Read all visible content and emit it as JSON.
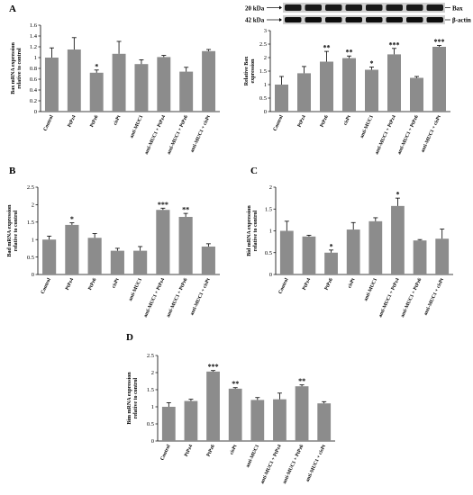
{
  "chart_data": [
    {
      "panel": "A",
      "type": "bar",
      "ylabel": "Bax mRNA expression relative to control",
      "ylim": [
        0,
        1.6
      ],
      "yticks": [
        0,
        0.2,
        0.4,
        0.6,
        0.8,
        1,
        1.2,
        1.4,
        1.6
      ],
      "categories": [
        "Control",
        "PtPz4",
        "PtPz6",
        "cisPt",
        "anti-MUC1",
        "anti-MUC1 + PtPz4",
        "anti-MUC1 + PtPz6",
        "anti-MUC1 + cisPt"
      ],
      "values": [
        1.0,
        1.15,
        0.72,
        1.07,
        0.88,
        1.01,
        0.74,
        1.12
      ],
      "errors": [
        0.18,
        0.22,
        0.05,
        0.23,
        0.08,
        0.03,
        0.08,
        0.03
      ],
      "significance": [
        "",
        "",
        "*",
        "",
        "",
        "",
        "",
        ""
      ]
    },
    {
      "panel": "A",
      "type": "bar",
      "ylabel": "Relative Bax expression",
      "ylim": [
        0,
        3
      ],
      "yticks": [
        0,
        0.5,
        1,
        1.5,
        2,
        2.5,
        3
      ],
      "categories": [
        "Control",
        "PtPz4",
        "PtPz6",
        "cisPt",
        "anti-MUC1",
        "anti-MUC1 + PtPz4",
        "anti-MUC1 + PtPz6",
        "anti-MUC1 + cisPt"
      ],
      "values": [
        1.0,
        1.42,
        1.85,
        1.98,
        1.55,
        2.12,
        1.25,
        2.4
      ],
      "errors": [
        0.3,
        0.25,
        0.38,
        0.08,
        0.1,
        0.22,
        0.05,
        0.05
      ],
      "significance": [
        "",
        "",
        "**",
        "**",
        "*",
        "***",
        "",
        "***"
      ],
      "blot_labels": [
        {
          "left": "20 kDa",
          "right": "Bax"
        },
        {
          "left": "42 kDa",
          "right": "β-actin"
        }
      ]
    },
    {
      "panel": "B",
      "type": "bar",
      "ylabel": "Bad mRNA expression relative to control",
      "ylim": [
        0,
        2.5
      ],
      "yticks": [
        0,
        0.5,
        1,
        1.5,
        2,
        2.5
      ],
      "categories": [
        "Control",
        "PtPz4",
        "PtPz6",
        "cisPt",
        "anti-MUC1",
        "anti-MUC1 + PtPz4",
        "anti-MUC1 + PtPz6",
        "anti-MUC1 + cisPt"
      ],
      "values": [
        1.0,
        1.42,
        1.05,
        0.68,
        0.68,
        1.85,
        1.65,
        0.8
      ],
      "errors": [
        0.1,
        0.06,
        0.12,
        0.07,
        0.12,
        0.05,
        0.1,
        0.08
      ],
      "significance": [
        "",
        "*",
        "",
        "",
        "",
        "***",
        "**",
        ""
      ]
    },
    {
      "panel": "C",
      "type": "bar",
      "ylabel": "Bid mRNA expression relative to control",
      "ylim": [
        0,
        2
      ],
      "yticks": [
        0,
        0.5,
        1,
        1.5,
        2
      ],
      "categories": [
        "Control",
        "PtPz4",
        "PtPz6",
        "cisPt",
        "anti-MUC1",
        "anti-MUC1 + PtPz4",
        "anti-MUC1 + PtPz6",
        "anti-MUC1 + cisPt"
      ],
      "values": [
        1.0,
        0.87,
        0.5,
        1.03,
        1.22,
        1.57,
        0.78,
        0.82
      ],
      "errors": [
        0.22,
        0.03,
        0.06,
        0.16,
        0.08,
        0.18,
        0.02,
        0.22
      ],
      "significance": [
        "",
        "",
        "*",
        "",
        "",
        "*",
        "",
        ""
      ]
    },
    {
      "panel": "D",
      "type": "bar",
      "ylabel": "Bim mRNA expression relative to control",
      "ylim": [
        0,
        2.5
      ],
      "yticks": [
        0,
        0.5,
        1,
        1.5,
        2,
        2.5
      ],
      "categories": [
        "Control",
        "PtPz4",
        "PtPz6",
        "cisPt",
        "anti-MUC1",
        "anti-MUC1 + PtPz4",
        "anti-MUC1 + PtPz6",
        "anti-MUC1 + cisPt"
      ],
      "values": [
        1.0,
        1.17,
        2.03,
        1.53,
        1.2,
        1.22,
        1.6,
        1.1
      ],
      "errors": [
        0.12,
        0.05,
        0.03,
        0.03,
        0.07,
        0.18,
        0.04,
        0.05
      ],
      "significance": [
        "",
        "",
        "***",
        "**",
        "",
        "",
        "**",
        ""
      ]
    }
  ]
}
